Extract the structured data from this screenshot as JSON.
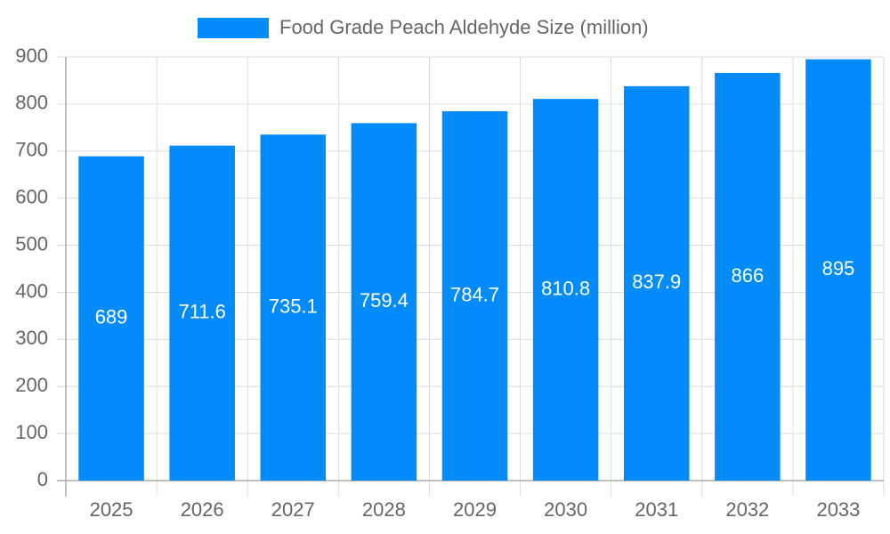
{
  "chart_data": {
    "type": "bar",
    "categories": [
      "2025",
      "2026",
      "2027",
      "2028",
      "2029",
      "2030",
      "2031",
      "2032",
      "2033"
    ],
    "series": [
      {
        "name": "Food Grade Peach Aldehyde Size (million)",
        "color": "#038cf9",
        "values": [
          689,
          711.6,
          735.1,
          759.4,
          784.7,
          810.8,
          837.9,
          866,
          895
        ]
      }
    ],
    "ylim": [
      0,
      900
    ],
    "yticks": [
      0,
      100,
      200,
      300,
      400,
      500,
      600,
      700,
      800,
      900
    ],
    "grid": true,
    "legend": "top"
  }
}
